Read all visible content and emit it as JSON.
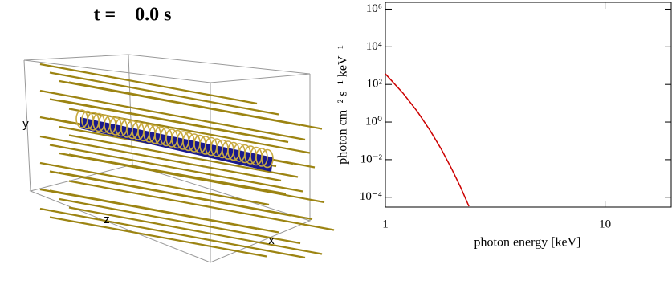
{
  "scene": {
    "title": "t =    0.0 s",
    "axis_labels": {
      "x": "x",
      "y": "y",
      "z": "z"
    }
  },
  "chart_data": {
    "type": "line",
    "x_label": "photon energy [keV]",
    "y_label": "photon cm⁻² s⁻¹ keV⁻¹",
    "xlog": true,
    "ylog": true,
    "xlim": [
      1,
      20
    ],
    "ylim": [
      3e-05,
      2300000.0
    ],
    "xticks": [
      1,
      10
    ],
    "yticks": [
      {
        "value": 0.0001,
        "label": "10⁻⁴"
      },
      {
        "value": 0.01,
        "label": "10⁻²"
      },
      {
        "value": 1,
        "label": "10⁰"
      },
      {
        "value": 100,
        "label": "10²"
      },
      {
        "value": 10000,
        "label": "10⁴"
      },
      {
        "value": 1000000,
        "label": "10⁶"
      }
    ],
    "series": [
      {
        "color": "#cc0000",
        "x": [
          1,
          1.2,
          1.4,
          1.6,
          1.8,
          2.0,
          2.2,
          2.4
        ],
        "values": [
          363,
          35.5,
          3.55,
          0.347,
          0.0347,
          0.00339,
          0.000339,
          3.31e-05
        ]
      }
    ]
  }
}
